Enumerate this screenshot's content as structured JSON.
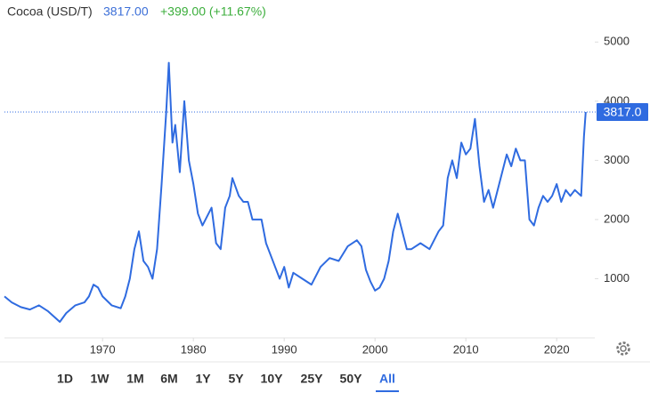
{
  "header": {
    "name": "Cocoa (USD/T)",
    "price": "3817.00",
    "change": "+399.00 (+11.67%)"
  },
  "chart_data": {
    "type": "line",
    "x": [
      1959.2,
      1960,
      1961,
      1962,
      1963,
      1964,
      1965.3,
      1966,
      1967,
      1968,
      1968.5,
      1969,
      1969.5,
      1970,
      1971,
      1972,
      1972.5,
      1973,
      1973.5,
      1974,
      1974.5,
      1975,
      1975.5,
      1976,
      1976.5,
      1977,
      1977.3,
      1977.7,
      1978,
      1978.5,
      1979,
      1979.5,
      1980,
      1980.5,
      1981,
      1982,
      1982.5,
      1983,
      1983.5,
      1984,
      1984.3,
      1985,
      1985.5,
      1986,
      1986.5,
      1987,
      1987.5,
      1988,
      1988.5,
      1989,
      1989.5,
      1990,
      1990.5,
      1991,
      1992,
      1993,
      1994,
      1995,
      1996,
      1997,
      1998,
      1998.5,
      1999,
      1999.5,
      2000,
      2000.5,
      2001,
      2001.5,
      2002,
      2002.5,
      2003,
      2003.5,
      2004,
      2005,
      2006,
      2007,
      2007.5,
      2008,
      2008.5,
      2009,
      2009.5,
      2010,
      2010.5,
      2011,
      2011.5,
      2012,
      2012.5,
      2013,
      2014,
      2014.5,
      2015,
      2015.5,
      2016,
      2016.5,
      2017,
      2017.5,
      2018,
      2018.5,
      2019,
      2019.5,
      2020,
      2020.5,
      2021,
      2021.5,
      2022,
      2022.7,
      2023,
      2023.2
    ],
    "series": [
      {
        "name": "Cocoa",
        "color": "#2f6be0",
        "values": [
          700,
          600,
          520,
          480,
          550,
          450,
          270,
          420,
          550,
          600,
          700,
          900,
          850,
          700,
          550,
          500,
          700,
          1000,
          1500,
          1800,
          1300,
          1200,
          1000,
          1500,
          2600,
          3800,
          4650,
          3300,
          3600,
          2800,
          4000,
          3000,
          2600,
          2100,
          1900,
          2200,
          1600,
          1500,
          2200,
          2400,
          2700,
          2400,
          2300,
          2300,
          2000,
          2000,
          2000,
          1600,
          1400,
          1200,
          1000,
          1200,
          850,
          1100,
          1000,
          900,
          1200,
          1350,
          1300,
          1550,
          1650,
          1550,
          1150,
          950,
          800,
          850,
          1000,
          1300,
          1800,
          2100,
          1800,
          1500,
          1500,
          1600,
          1500,
          1800,
          1900,
          2700,
          3000,
          2700,
          3300,
          3100,
          3200,
          3700,
          2900,
          2300,
          2500,
          2200,
          2800,
          3100,
          2900,
          3200,
          3000,
          3000,
          2000,
          1900,
          2200,
          2400,
          2300,
          2400,
          2600,
          2300,
          2500,
          2400,
          2500,
          2400,
          3400,
          3817
        ]
      }
    ],
    "xlim": [
      1959.2,
      2024.2
    ],
    "xticks": [
      1970,
      1980,
      1990,
      2000,
      2010,
      2020
    ],
    "ylim": [
      0,
      5260
    ],
    "yticks": [
      1000,
      2000,
      3000,
      4000,
      5000
    ],
    "price_line": {
      "value": 3817,
      "label": "3817.0"
    }
  },
  "range_buttons": [
    "1D",
    "1W",
    "1M",
    "6M",
    "1Y",
    "5Y",
    "10Y",
    "25Y",
    "50Y",
    "All"
  ],
  "selected_range": 9
}
